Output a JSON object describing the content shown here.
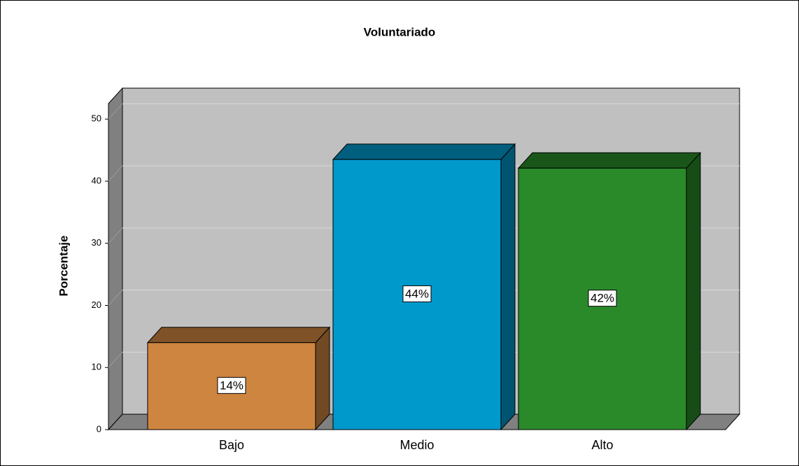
{
  "chart_data": {
    "type": "bar",
    "title": "Voluntariado",
    "y_label": "Porcentaje",
    "categories": [
      "Bajo",
      "Medio",
      "Alto"
    ],
    "values": [
      14,
      43.5,
      42.1
    ],
    "value_labels": [
      "14%",
      "44%",
      "42%"
    ],
    "colors": [
      "#cd8540",
      "#0099cc",
      "#2a8a2a"
    ],
    "ylim": [
      0,
      52.5
    ],
    "yticks": [
      0,
      10,
      20,
      30,
      40,
      50
    ],
    "grid": true
  }
}
